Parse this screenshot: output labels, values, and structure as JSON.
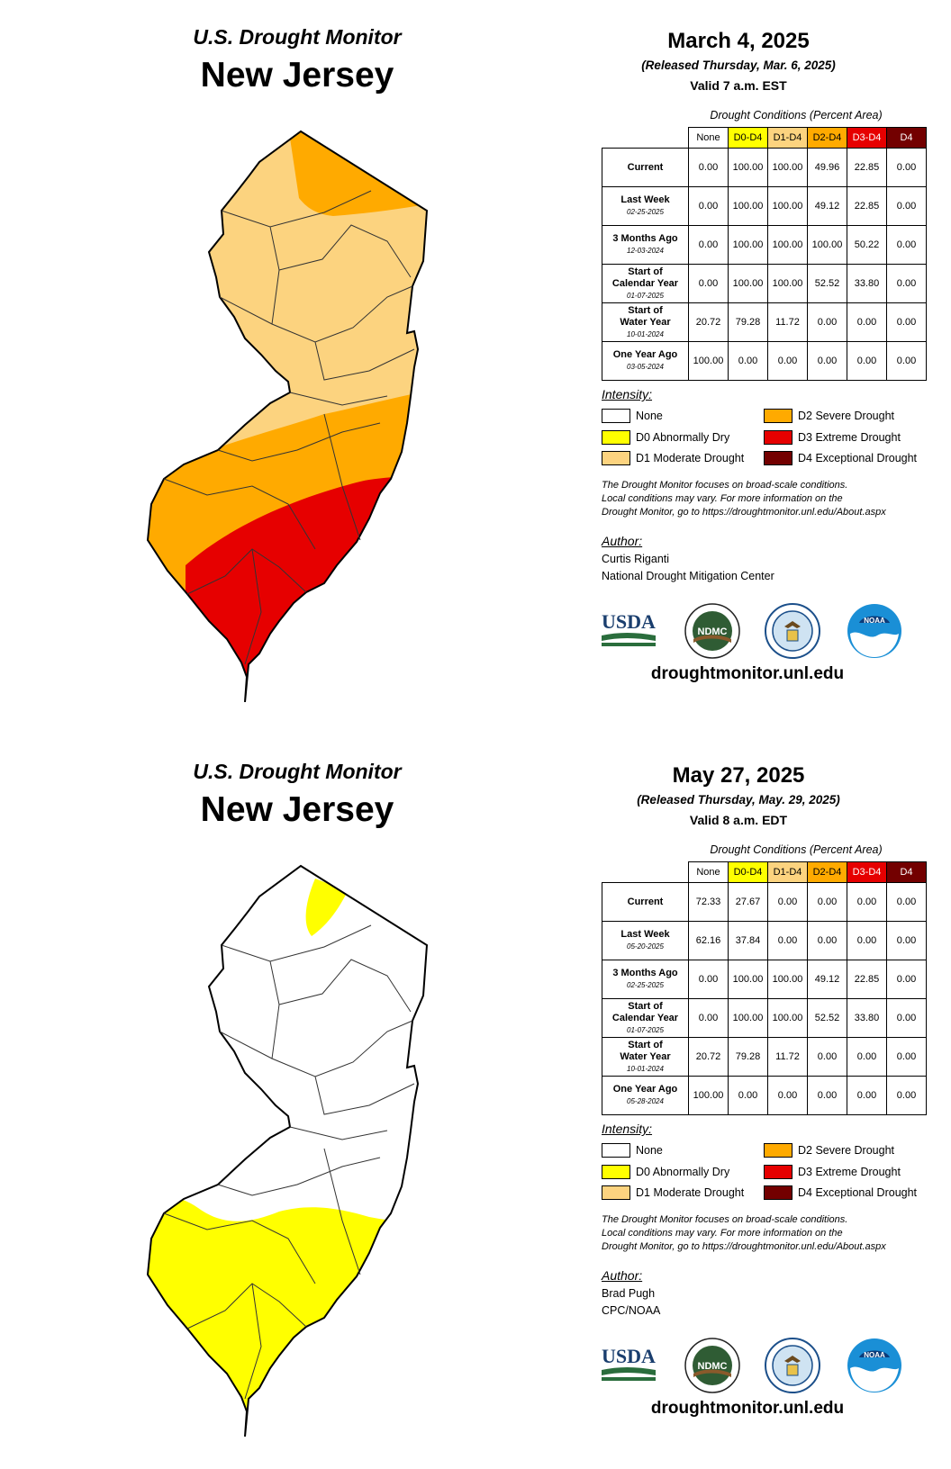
{
  "colors": {
    "none": "#ffffff",
    "d0": "#ffff00",
    "d1": "#fcd37f",
    "d2": "#ffaa00",
    "d3": "#e60000",
    "d4": "#730000"
  },
  "maps": [
    {
      "monitor_title": "U.S. Drought Monitor",
      "state_title": "New Jersey",
      "map_image": "New Jersey county map shaded by drought category: north and central in D1 Moderate Drought, a band of D2 Severe Drought, south in D3 Extreme Drought",
      "date": "March 4, 2025",
      "released": "(Released Thursday, Mar. 6, 2025)",
      "valid": "Valid 7 a.m. EST",
      "table_caption": "Drought Conditions (Percent Area)",
      "table_headers": [
        "None",
        "D0-D4",
        "D1-D4",
        "D2-D4",
        "D3-D4",
        "D4"
      ],
      "rows": [
        {
          "label": "Current",
          "label2": "",
          "date": "",
          "values": [
            "0.00",
            "100.00",
            "100.00",
            "49.96",
            "22.85",
            "0.00"
          ]
        },
        {
          "label": "Last Week",
          "label2": "",
          "date": "02-25-2025",
          "values": [
            "0.00",
            "100.00",
            "100.00",
            "49.12",
            "22.85",
            "0.00"
          ]
        },
        {
          "label": "3 Months Ago",
          "label2": "",
          "date": "12-03-2024",
          "values": [
            "0.00",
            "100.00",
            "100.00",
            "100.00",
            "50.22",
            "0.00"
          ]
        },
        {
          "label": "Start of",
          "label2": "Calendar Year",
          "date": "01-07-2025",
          "values": [
            "0.00",
            "100.00",
            "100.00",
            "52.52",
            "33.80",
            "0.00"
          ]
        },
        {
          "label": "Start of",
          "label2": "Water Year",
          "date": "10-01-2024",
          "values": [
            "20.72",
            "79.28",
            "11.72",
            "0.00",
            "0.00",
            "0.00"
          ]
        },
        {
          "label": "One Year Ago",
          "label2": "",
          "date": "03-05-2024",
          "values": [
            "100.00",
            "0.00",
            "0.00",
            "0.00",
            "0.00",
            "0.00"
          ]
        }
      ],
      "intensity_label": "Intensity:",
      "legend": [
        {
          "label": "None",
          "color": "#ffffff"
        },
        {
          "label": "D0 Abnormally Dry",
          "color": "#ffff00"
        },
        {
          "label": "D1 Moderate Drought",
          "color": "#fcd37f"
        },
        {
          "label": "D2 Severe Drought",
          "color": "#ffaa00"
        },
        {
          "label": "D3 Extreme Drought",
          "color": "#e60000"
        },
        {
          "label": "D4 Exceptional Drought",
          "color": "#730000"
        }
      ],
      "disclaimer": [
        "The Drought Monitor focuses on broad-scale conditions.",
        "Local conditions may vary. For more information on the",
        "Drought Monitor, go to https://droughtmonitor.unl.edu/About.aspx"
      ],
      "author_label": "Author:",
      "author_name": "Curtis Riganti",
      "author_org": "National Drought Mitigation Center",
      "logos": {
        "usda": "USDA",
        "ndmc": "NDMC",
        "noaa": "NOAA"
      },
      "website": "droughtmonitor.unl.edu"
    },
    {
      "monitor_title": "U.S. Drought Monitor",
      "state_title": "New Jersey",
      "map_image": "New Jersey county map mostly with no drought, with D0 Abnormally Dry in the far north and across the southern part of the state",
      "date": "May 27, 2025",
      "released": "(Released Thursday, May. 29, 2025)",
      "valid": "Valid 8 a.m. EDT",
      "table_caption": "Drought Conditions (Percent Area)",
      "table_headers": [
        "None",
        "D0-D4",
        "D1-D4",
        "D2-D4",
        "D3-D4",
        "D4"
      ],
      "rows": [
        {
          "label": "Current",
          "label2": "",
          "date": "",
          "values": [
            "72.33",
            "27.67",
            "0.00",
            "0.00",
            "0.00",
            "0.00"
          ]
        },
        {
          "label": "Last Week",
          "label2": "",
          "date": "05-20-2025",
          "values": [
            "62.16",
            "37.84",
            "0.00",
            "0.00",
            "0.00",
            "0.00"
          ]
        },
        {
          "label": "3 Months Ago",
          "label2": "",
          "date": "02-25-2025",
          "values": [
            "0.00",
            "100.00",
            "100.00",
            "49.12",
            "22.85",
            "0.00"
          ]
        },
        {
          "label": "Start of",
          "label2": "Calendar Year",
          "date": "01-07-2025",
          "values": [
            "0.00",
            "100.00",
            "100.00",
            "52.52",
            "33.80",
            "0.00"
          ]
        },
        {
          "label": "Start of",
          "label2": "Water Year",
          "date": "10-01-2024",
          "values": [
            "20.72",
            "79.28",
            "11.72",
            "0.00",
            "0.00",
            "0.00"
          ]
        },
        {
          "label": "One Year Ago",
          "label2": "",
          "date": "05-28-2024",
          "values": [
            "100.00",
            "0.00",
            "0.00",
            "0.00",
            "0.00",
            "0.00"
          ]
        }
      ],
      "intensity_label": "Intensity:",
      "legend": [
        {
          "label": "None",
          "color": "#ffffff"
        },
        {
          "label": "D0 Abnormally Dry",
          "color": "#ffff00"
        },
        {
          "label": "D1 Moderate Drought",
          "color": "#fcd37f"
        },
        {
          "label": "D2 Severe Drought",
          "color": "#ffaa00"
        },
        {
          "label": "D3 Extreme Drought",
          "color": "#e60000"
        },
        {
          "label": "D4 Exceptional Drought",
          "color": "#730000"
        }
      ],
      "disclaimer": [
        "The Drought Monitor focuses on broad-scale conditions.",
        "Local conditions may vary. For more information on the",
        "Drought Monitor, go to https://droughtmonitor.unl.edu/About.aspx"
      ],
      "author_label": "Author:",
      "author_name": "Brad Pugh",
      "author_org": "CPC/NOAA",
      "logos": {
        "usda": "USDA",
        "ndmc": "NDMC",
        "noaa": "NOAA"
      },
      "website": "droughtmonitor.unl.edu"
    }
  ]
}
